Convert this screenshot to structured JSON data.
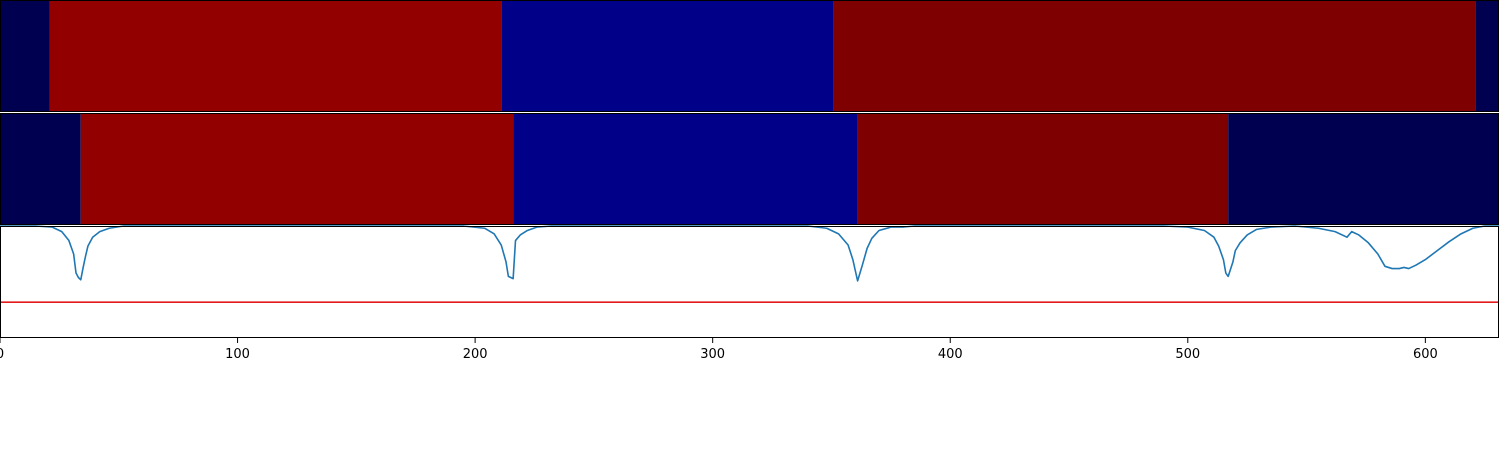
{
  "chart_data": {
    "type": "area",
    "title": "",
    "xlim": [
      0,
      631
    ],
    "panels": [
      {
        "name": "",
        "type": "segment-strip",
        "segments": [
          {
            "x0": 0,
            "x1": 21,
            "color": "#000050"
          },
          {
            "x0": 21,
            "x1": 211,
            "color": "#930000"
          },
          {
            "x0": 211,
            "x1": 351,
            "color": "#000088"
          },
          {
            "x0": 351,
            "x1": 621,
            "color": "#7e0000"
          },
          {
            "x0": 621,
            "x1": 631,
            "color": "#000050"
          }
        ]
      },
      {
        "name": "",
        "type": "segment-strip",
        "segments": [
          {
            "x0": 0,
            "x1": 34,
            "color": "#000050"
          },
          {
            "x0": 34,
            "x1": 216,
            "color": "#930000"
          },
          {
            "x0": 216,
            "x1": 361,
            "color": "#000088"
          },
          {
            "x0": 361,
            "x1": 517,
            "color": "#7e0000"
          },
          {
            "x0": 517,
            "x1": 631,
            "color": "#000050"
          }
        ]
      },
      {
        "name": "",
        "type": "line",
        "ylim": [
          -1.0,
          0.0
        ],
        "line_color": "#1f77b4",
        "threshold": -0.68,
        "threshold_color": "#e31a1c",
        "points": [
          [
            0,
            0.0
          ],
          [
            15,
            0.0
          ],
          [
            22,
            -0.01
          ],
          [
            26,
            -0.05
          ],
          [
            29,
            -0.13
          ],
          [
            31,
            -0.25
          ],
          [
            32,
            -0.42
          ],
          [
            33,
            -0.46
          ],
          [
            34,
            -0.48
          ],
          [
            35,
            -0.37
          ],
          [
            36,
            -0.27
          ],
          [
            37,
            -0.18
          ],
          [
            39,
            -0.1
          ],
          [
            42,
            -0.05
          ],
          [
            46,
            -0.02
          ],
          [
            52,
            0.0
          ],
          [
            195,
            0.0
          ],
          [
            204,
            -0.02
          ],
          [
            208,
            -0.07
          ],
          [
            211,
            -0.17
          ],
          [
            213,
            -0.32
          ],
          [
            214,
            -0.45
          ],
          [
            216,
            -0.47
          ],
          [
            217,
            -0.13
          ],
          [
            219,
            -0.08
          ],
          [
            222,
            -0.04
          ],
          [
            226,
            -0.01
          ],
          [
            232,
            0.0
          ],
          [
            340,
            0.0
          ],
          [
            348,
            -0.02
          ],
          [
            353,
            -0.07
          ],
          [
            357,
            -0.17
          ],
          [
            359,
            -0.3
          ],
          [
            361,
            -0.49
          ],
          [
            363,
            -0.35
          ],
          [
            365,
            -0.2
          ],
          [
            367,
            -0.11
          ],
          [
            370,
            -0.04
          ],
          [
            375,
            -0.01
          ],
          [
            380,
            -0.01
          ],
          [
            385,
            0.0
          ],
          [
            490,
            0.0
          ],
          [
            500,
            -0.01
          ],
          [
            507,
            -0.04
          ],
          [
            511,
            -0.1
          ],
          [
            513,
            -0.18
          ],
          [
            515,
            -0.3
          ],
          [
            516,
            -0.42
          ],
          [
            517,
            -0.45
          ],
          [
            519,
            -0.32
          ],
          [
            520,
            -0.22
          ],
          [
            522,
            -0.15
          ],
          [
            525,
            -0.08
          ],
          [
            529,
            -0.03
          ],
          [
            535,
            -0.01
          ],
          [
            545,
            0.0
          ],
          [
            555,
            -0.02
          ],
          [
            562,
            -0.05
          ],
          [
            567,
            -0.1
          ],
          [
            569,
            -0.05
          ],
          [
            572,
            -0.08
          ],
          [
            576,
            -0.15
          ],
          [
            580,
            -0.25
          ],
          [
            583,
            -0.36
          ],
          [
            586,
            -0.38
          ],
          [
            589,
            -0.38
          ],
          [
            591,
            -0.37
          ],
          [
            593,
            -0.38
          ],
          [
            596,
            -0.35
          ],
          [
            600,
            -0.3
          ],
          [
            605,
            -0.22
          ],
          [
            610,
            -0.14
          ],
          [
            615,
            -0.07
          ],
          [
            620,
            -0.02
          ],
          [
            625,
            0.0
          ],
          [
            631,
            0.0
          ]
        ]
      }
    ],
    "xticks": [
      0,
      100,
      200,
      300,
      400,
      500,
      600
    ],
    "xtick_labels": [
      "0",
      "100",
      "200",
      "300",
      "400",
      "500",
      "600"
    ],
    "xlabel": "",
    "ylabel": "",
    "grid": false,
    "legend": "none"
  }
}
